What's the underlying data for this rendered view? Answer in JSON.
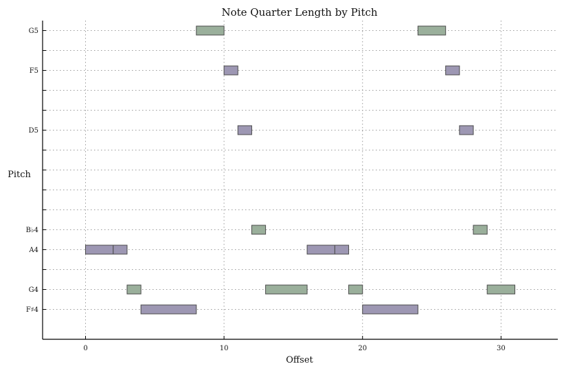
{
  "chart_data": {
    "type": "bar",
    "subtype": "horizontal-range (piano roll)",
    "title": "Note Quarter Length by Pitch",
    "xlabel": "Offset",
    "ylabel": "Pitch",
    "xlim": [
      -3.1,
      34.1
    ],
    "x_ticks": [
      0,
      10,
      20,
      30
    ],
    "y_range_steps": [
      -1.5,
      14.5
    ],
    "pitch_rows": [
      {
        "step": 0,
        "label": "F♯4"
      },
      {
        "step": 1,
        "label": "G4"
      },
      {
        "step": 2,
        "label": ""
      },
      {
        "step": 3,
        "label": "A4"
      },
      {
        "step": 4,
        "label": "B♭4"
      },
      {
        "step": 5,
        "label": ""
      },
      {
        "step": 6,
        "label": ""
      },
      {
        "step": 7,
        "label": ""
      },
      {
        "step": 8,
        "label": ""
      },
      {
        "step": 9,
        "label": "D5"
      },
      {
        "step": 10,
        "label": ""
      },
      {
        "step": 11,
        "label": ""
      },
      {
        "step": 12,
        "label": "F5"
      },
      {
        "step": 13,
        "label": ""
      },
      {
        "step": 14,
        "label": "G5"
      }
    ],
    "notes": [
      {
        "pitch": "A4",
        "step": 3,
        "offset": 0,
        "length": 2,
        "group": 0
      },
      {
        "pitch": "A4",
        "step": 3,
        "offset": 2,
        "length": 1,
        "group": 0
      },
      {
        "pitch": "G4",
        "step": 1,
        "offset": 3,
        "length": 1,
        "group": 1
      },
      {
        "pitch": "F♯4",
        "step": 0,
        "offset": 4,
        "length": 4,
        "group": 0
      },
      {
        "pitch": "G5",
        "step": 14,
        "offset": 8,
        "length": 2,
        "group": 1
      },
      {
        "pitch": "F5",
        "step": 12,
        "offset": 10,
        "length": 1,
        "group": 0
      },
      {
        "pitch": "D5",
        "step": 9,
        "offset": 11,
        "length": 1,
        "group": 0
      },
      {
        "pitch": "B♭4",
        "step": 4,
        "offset": 12,
        "length": 1,
        "group": 1
      },
      {
        "pitch": "G4",
        "step": 1,
        "offset": 13,
        "length": 3,
        "group": 1
      },
      {
        "pitch": "A4",
        "step": 3,
        "offset": 16,
        "length": 2,
        "group": 0
      },
      {
        "pitch": "A4",
        "step": 3,
        "offset": 18,
        "length": 1,
        "group": 0
      },
      {
        "pitch": "G4",
        "step": 1,
        "offset": 19,
        "length": 1,
        "group": 1
      },
      {
        "pitch": "F♯4",
        "step": 0,
        "offset": 20,
        "length": 4,
        "group": 0
      },
      {
        "pitch": "G5",
        "step": 14,
        "offset": 24,
        "length": 2,
        "group": 1
      },
      {
        "pitch": "F5",
        "step": 12,
        "offset": 26,
        "length": 1,
        "group": 0
      },
      {
        "pitch": "D5",
        "step": 9,
        "offset": 27,
        "length": 1,
        "group": 0
      },
      {
        "pitch": "B♭4",
        "step": 4,
        "offset": 28,
        "length": 1,
        "group": 1
      },
      {
        "pitch": "G4",
        "step": 1,
        "offset": 29,
        "length": 2,
        "group": 1
      }
    ],
    "colors": {
      "group_0": "#9d97b3",
      "group_1": "#9aaf9b",
      "bar_edge": "#4a4a4a",
      "grid": "#9a9a9a",
      "axis": "#000000"
    },
    "grid": true,
    "legend": "none"
  }
}
